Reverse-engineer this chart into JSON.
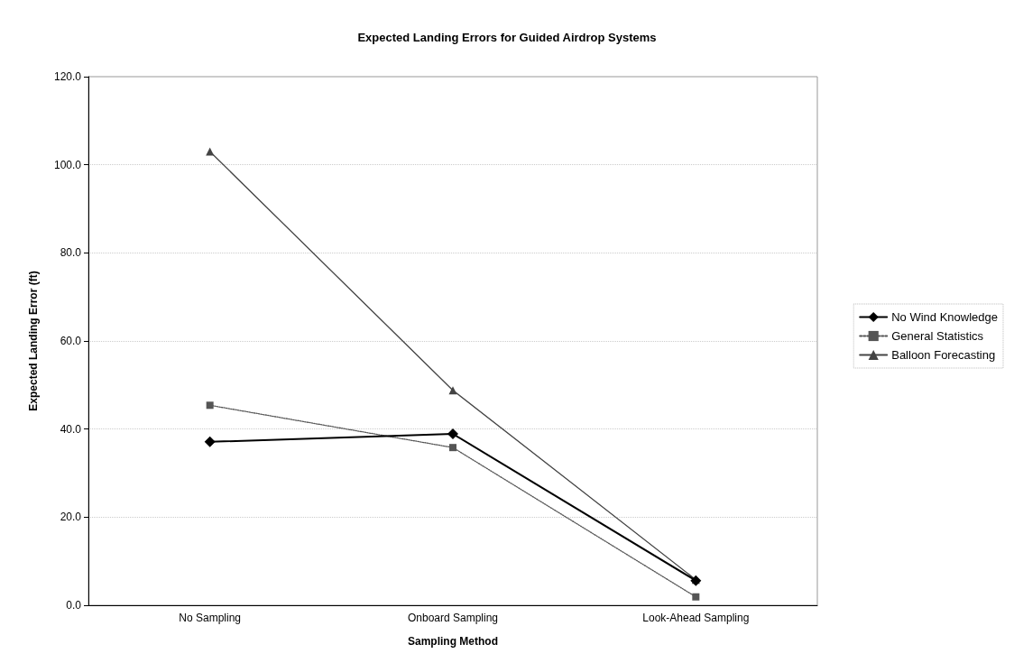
{
  "chart_data": {
    "type": "line",
    "title": "Expected Landing Errors for Guided Airdrop Systems",
    "xlabel": "Sampling Method",
    "ylabel": "Expected Landing Error (ft)",
    "categories": [
      "No Sampling",
      "Onboard Sampling",
      "Look-Ahead Sampling"
    ],
    "series": [
      {
        "name": "No Wind Knowledge",
        "color": "#000000",
        "values": [
          37.1,
          38.9,
          5.6
        ],
        "marker": "diamond",
        "line_style": "solid"
      },
      {
        "name": "General Statistics",
        "color": "#555555",
        "values": [
          45.4,
          35.8,
          1.9
        ],
        "marker": "square",
        "line_style": "dotted"
      },
      {
        "name": "Balloon Forecasting",
        "color": "#444444",
        "values": [
          103,
          48.8,
          5.8
        ],
        "marker": "triangle",
        "line_style": "solid"
      }
    ],
    "ylim": [
      0,
      120
    ],
    "yticks": [
      {
        "value": 0,
        "label": "0.0"
      },
      {
        "value": 20,
        "label": "20.0"
      },
      {
        "value": 40,
        "label": "40.0"
      },
      {
        "value": 60,
        "label": "60.0"
      },
      {
        "value": 80,
        "label": "80.0"
      },
      {
        "value": 100,
        "label": "100.0"
      },
      {
        "value": 120,
        "label": "120.0"
      }
    ],
    "grid": "y",
    "legend": "right"
  }
}
